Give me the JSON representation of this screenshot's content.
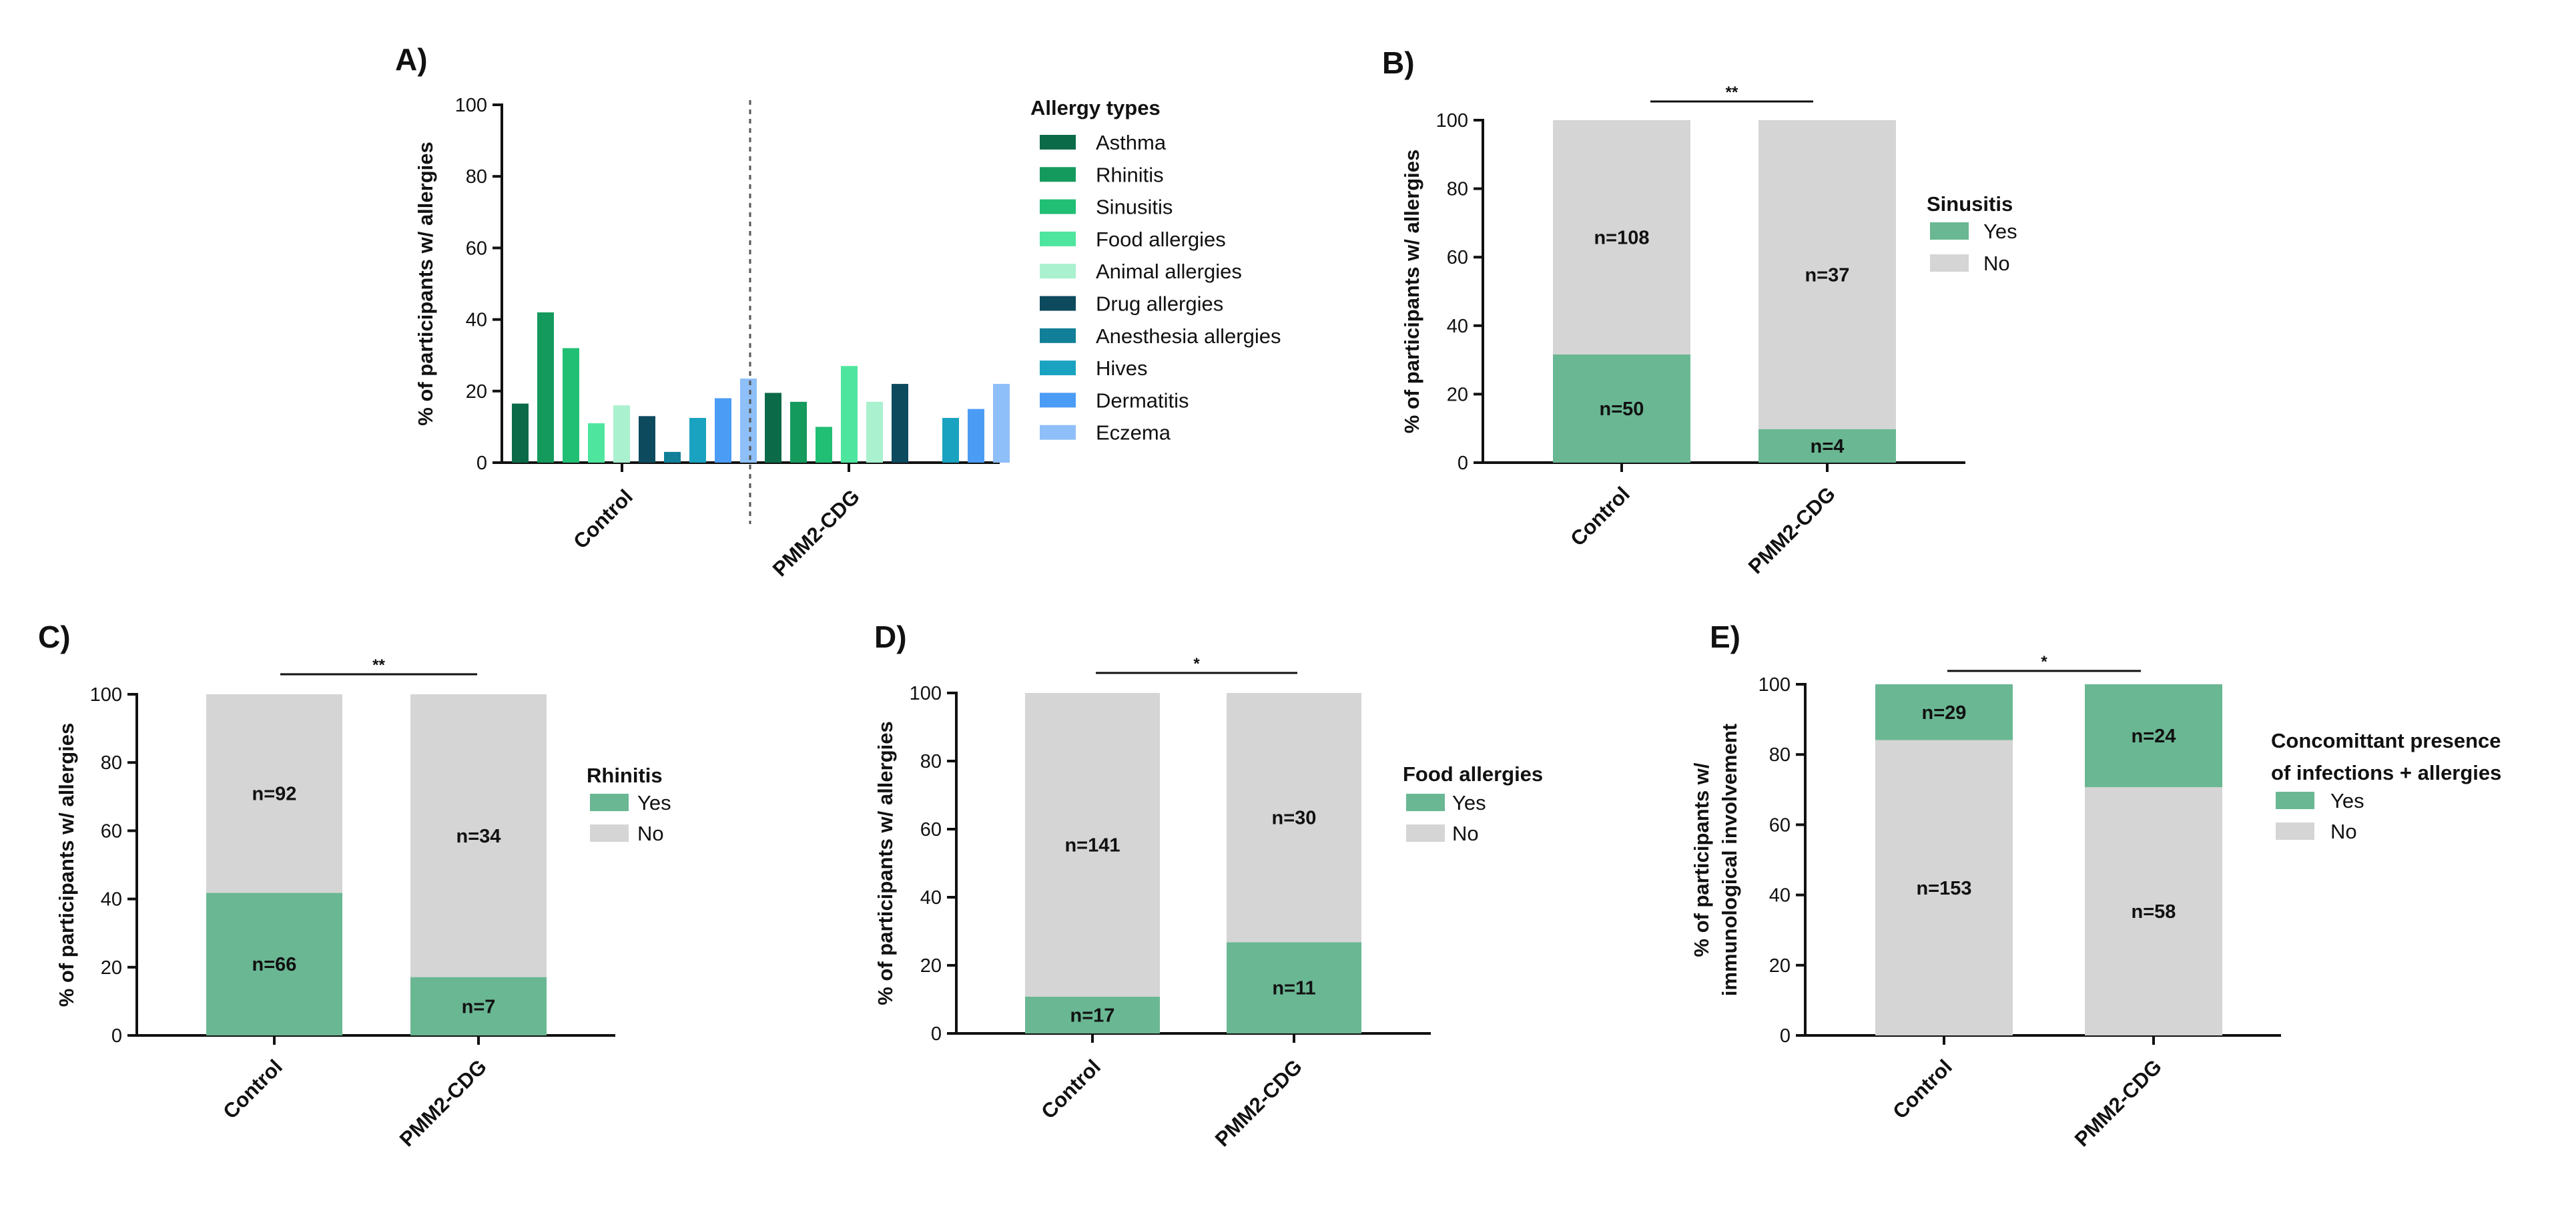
{
  "chart_data": [
    {
      "panel": "A)",
      "type": "bar",
      "ylabel": "% of participants w/ allergies",
      "ylim": [
        0,
        100
      ],
      "yticks": [
        0,
        20,
        40,
        60,
        80,
        100
      ],
      "categories": [
        "Control",
        "PMM2-CDG"
      ],
      "legend_title": "Allergy types",
      "series": [
        {
          "name": "Asthma",
          "color": "#0b6b48",
          "values": [
            16.5,
            19.5
          ]
        },
        {
          "name": "Rhinitis",
          "color": "#159a5e",
          "values": [
            42,
            17
          ]
        },
        {
          "name": "Sinusitis",
          "color": "#21bf74",
          "values": [
            32,
            10
          ]
        },
        {
          "name": "Food allergies",
          "color": "#4ee69e",
          "values": [
            11,
            27
          ]
        },
        {
          "name": "Animal allergies",
          "color": "#a9f1cf",
          "values": [
            16,
            17
          ]
        },
        {
          "name": "Drug allergies",
          "color": "#0d4a5e",
          "values": [
            13,
            22
          ]
        },
        {
          "name": "Anesthesia allergies",
          "color": "#117f98",
          "values": [
            3,
            0
          ]
        },
        {
          "name": "Hives",
          "color": "#1aa3c0",
          "values": [
            12.5,
            12.5
          ]
        },
        {
          "name": "Dermatitis",
          "color": "#4b9cf5",
          "values": [
            18,
            15
          ]
        },
        {
          "name": "Eczema",
          "color": "#8ebff8",
          "values": [
            23.5,
            22
          ]
        }
      ]
    },
    {
      "panel": "B)",
      "type": "bar",
      "stacked": true,
      "ylabel": "% of participants w/ allergies",
      "ylim": [
        0,
        100
      ],
      "yticks": [
        0,
        20,
        40,
        60,
        80,
        100
      ],
      "categories": [
        "Control",
        "PMM2-CDG"
      ],
      "legend_title": "Sinusitis",
      "significance": "**",
      "series": [
        {
          "name": "Yes",
          "color": "#6ab793",
          "values": [
            31.6,
            9.8
          ],
          "labels": [
            "n=50",
            "n=4"
          ]
        },
        {
          "name": "No",
          "color": "#d5d5d5",
          "values": [
            68.4,
            90.2
          ],
          "labels": [
            "n=108",
            "n=37"
          ]
        }
      ]
    },
    {
      "panel": "C)",
      "type": "bar",
      "stacked": true,
      "ylabel": "% of participants w/ allergies",
      "ylim": [
        0,
        100
      ],
      "yticks": [
        0,
        20,
        40,
        60,
        80,
        100
      ],
      "categories": [
        "Control",
        "PMM2-CDG"
      ],
      "legend_title": "Rhinitis",
      "significance": "**",
      "series": [
        {
          "name": "Yes",
          "color": "#6ab793",
          "values": [
            41.8,
            17.1
          ],
          "labels": [
            "n=66",
            "n=7"
          ]
        },
        {
          "name": "No",
          "color": "#d5d5d5",
          "values": [
            58.2,
            82.9
          ],
          "labels": [
            "n=92",
            "n=34"
          ]
        }
      ]
    },
    {
      "panel": "D)",
      "type": "bar",
      "stacked": true,
      "ylabel": "% of participants w/ allergies",
      "ylim": [
        0,
        100
      ],
      "yticks": [
        0,
        20,
        40,
        60,
        80,
        100
      ],
      "categories": [
        "Control",
        "PMM2-CDG"
      ],
      "legend_title": "Food allergies",
      "significance": "*",
      "series": [
        {
          "name": "Yes",
          "color": "#6ab793",
          "values": [
            10.8,
            26.8
          ],
          "labels": [
            "n=17",
            "n=11"
          ]
        },
        {
          "name": "No",
          "color": "#d5d5d5",
          "values": [
            89.2,
            73.2
          ],
          "labels": [
            "n=141",
            "n=30"
          ]
        }
      ]
    },
    {
      "panel": "E)",
      "type": "bar",
      "stacked": true,
      "ylabel": [
        "% of participants w/",
        "immunological involvement"
      ],
      "ylim": [
        0,
        100
      ],
      "yticks": [
        0,
        20,
        40,
        60,
        80,
        100
      ],
      "categories": [
        "Control",
        "PMM2-CDG"
      ],
      "legend_title": [
        "Concomittant presence",
        "of infections + allergies"
      ],
      "significance": "*",
      "series": [
        {
          "name": "No",
          "color": "#d5d5d5",
          "values": [
            84.1,
            70.7
          ],
          "labels": [
            "n=153",
            "n=58"
          ]
        },
        {
          "name": "Yes",
          "color": "#6ab793",
          "values": [
            15.9,
            29.3
          ],
          "labels": [
            "n=29",
            "n=24"
          ]
        }
      ]
    }
  ]
}
